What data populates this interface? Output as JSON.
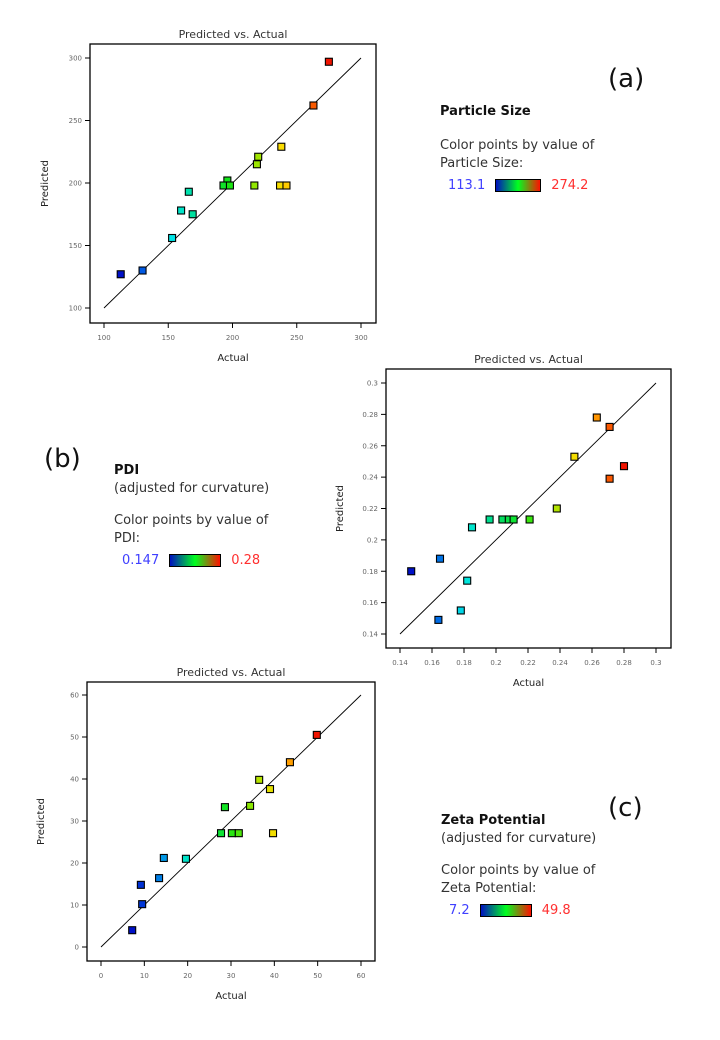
{
  "chart_data": [
    {
      "id": "a",
      "type": "scatter",
      "panel_label": "(a)",
      "title": "Predicted vs. Actual",
      "xlabel": "Actual",
      "ylabel": "Predicted",
      "xlim": [
        100,
        300
      ],
      "ylim": [
        100,
        300
      ],
      "xticks": [
        "100",
        "150",
        "200",
        "250",
        "300"
      ],
      "yticks": [
        "100",
        "150",
        "200",
        "250",
        "300"
      ],
      "xtick_values": [
        100,
        150,
        200,
        250,
        300
      ],
      "ytick_values": [
        100,
        150,
        200,
        250,
        300
      ],
      "reference_line": [
        [
          100,
          100
        ],
        [
          300,
          300
        ]
      ],
      "grid": false,
      "legend": {
        "title": "Particle Size",
        "subtitle": "",
        "description": "Color points by value of",
        "variable": "Particle Size:",
        "min_label": "113.1",
        "max_label": "274.2"
      },
      "color_range": [
        113.1,
        274.2
      ],
      "points": [
        {
          "x": 275,
          "y": 297
        },
        {
          "x": 263,
          "y": 262
        },
        {
          "x": 238,
          "y": 229
        },
        {
          "x": 220,
          "y": 221
        },
        {
          "x": 219,
          "y": 215
        },
        {
          "x": 217,
          "y": 198
        },
        {
          "x": 237,
          "y": 198
        },
        {
          "x": 242,
          "y": 198
        },
        {
          "x": 196,
          "y": 202
        },
        {
          "x": 193,
          "y": 198
        },
        {
          "x": 198,
          "y": 198
        },
        {
          "x": 166,
          "y": 193
        },
        {
          "x": 160,
          "y": 178
        },
        {
          "x": 169,
          "y": 175
        },
        {
          "x": 153,
          "y": 156
        },
        {
          "x": 130,
          "y": 130
        },
        {
          "x": 113,
          "y": 127
        }
      ]
    },
    {
      "id": "b",
      "type": "scatter",
      "panel_label": "(b)",
      "title": "Predicted vs. Actual",
      "xlabel": "Actual",
      "ylabel": "Predicted",
      "xlim": [
        0.14,
        0.3
      ],
      "ylim": [
        0.14,
        0.3
      ],
      "xticks": [
        "0.14",
        "0.16",
        "0.18",
        "0.2",
        "0.22",
        "0.24",
        "0.26",
        "0.28",
        "0.3"
      ],
      "yticks": [
        "0.14",
        "0.16",
        "0.18",
        "0.2",
        "0.22",
        "0.24",
        "0.26",
        "0.28",
        "0.3"
      ],
      "xtick_values": [
        0.14,
        0.16,
        0.18,
        0.2,
        0.22,
        0.24,
        0.26,
        0.28,
        0.3
      ],
      "ytick_values": [
        0.14,
        0.16,
        0.18,
        0.2,
        0.22,
        0.24,
        0.26,
        0.28,
        0.3
      ],
      "reference_line": [
        [
          0.14,
          0.14
        ],
        [
          0.3,
          0.3
        ]
      ],
      "grid": false,
      "legend": {
        "title": "PDI",
        "subtitle": "(adjusted for curvature)",
        "description": "Color points by value of",
        "variable": "PDI:",
        "min_label": "0.147",
        "max_label": "0.28"
      },
      "color_range": [
        0.147,
        0.28
      ],
      "points": [
        {
          "x": 0.263,
          "y": 0.278,
          "c": 0.262
        },
        {
          "x": 0.271,
          "y": 0.272
        },
        {
          "x": 0.249,
          "y": 0.253
        },
        {
          "x": 0.28,
          "y": 0.247
        },
        {
          "x": 0.271,
          "y": 0.239
        },
        {
          "x": 0.238,
          "y": 0.22
        },
        {
          "x": 0.196,
          "y": 0.213
        },
        {
          "x": 0.204,
          "y": 0.213
        },
        {
          "x": 0.208,
          "y": 0.213
        },
        {
          "x": 0.211,
          "y": 0.213
        },
        {
          "x": 0.221,
          "y": 0.213
        },
        {
          "x": 0.185,
          "y": 0.208
        },
        {
          "x": 0.165,
          "y": 0.188
        },
        {
          "x": 0.147,
          "y": 0.18
        },
        {
          "x": 0.182,
          "y": 0.174
        },
        {
          "x": 0.178,
          "y": 0.155
        },
        {
          "x": 0.164,
          "y": 0.149
        }
      ]
    },
    {
      "id": "c",
      "type": "scatter",
      "panel_label": "(c)",
      "title": "Predicted vs. Actual",
      "xlabel": "Actual",
      "ylabel": "Predicted",
      "xlim": [
        0,
        60
      ],
      "ylim": [
        0,
        60
      ],
      "xticks": [
        "0",
        "10",
        "20",
        "30",
        "40",
        "50",
        "60"
      ],
      "yticks": [
        "0",
        "10",
        "20",
        "30",
        "40",
        "50",
        "60"
      ],
      "xtick_values": [
        0,
        10,
        20,
        30,
        40,
        50,
        60
      ],
      "ytick_values": [
        0,
        10,
        20,
        30,
        40,
        50,
        60
      ],
      "reference_line": [
        [
          0,
          0
        ],
        [
          60,
          60
        ]
      ],
      "grid": false,
      "legend": {
        "title": "Zeta Potential",
        "subtitle": "(adjusted for curvature)",
        "description": "Color points by value of",
        "variable": "Zeta Potential:",
        "min_label": "7.2",
        "max_label": "49.8"
      },
      "color_range": [
        7.2,
        49.8
      ],
      "points": [
        {
          "x": 49.8,
          "y": 50.5
        },
        {
          "x": 43.6,
          "y": 44.0
        },
        {
          "x": 36.5,
          "y": 39.8
        },
        {
          "x": 39.0,
          "y": 37.6
        },
        {
          "x": 34.4,
          "y": 33.6
        },
        {
          "x": 28.6,
          "y": 33.3
        },
        {
          "x": 27.7,
          "y": 27.1
        },
        {
          "x": 30.2,
          "y": 27.1
        },
        {
          "x": 31.8,
          "y": 27.1
        },
        {
          "x": 39.7,
          "y": 27.1
        },
        {
          "x": 19.6,
          "y": 21.0
        },
        {
          "x": 14.5,
          "y": 21.2
        },
        {
          "x": 13.4,
          "y": 16.4
        },
        {
          "x": 9.2,
          "y": 14.8
        },
        {
          "x": 9.5,
          "y": 10.2
        },
        {
          "x": 7.2,
          "y": 4.0
        }
      ]
    }
  ]
}
